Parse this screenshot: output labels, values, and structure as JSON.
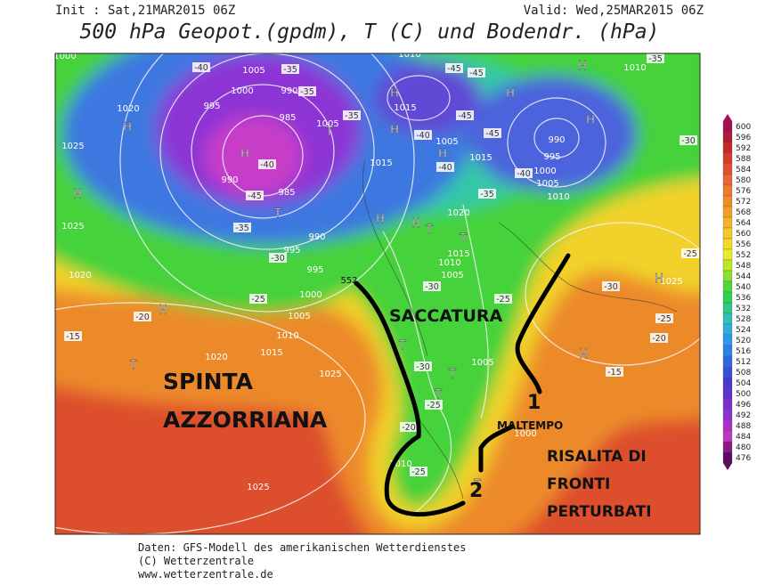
{
  "header": {
    "init": "Init : Sat,21MAR2015 06Z",
    "valid": "Valid: Wed,25MAR2015 06Z",
    "title": "500 hPa Geopot.(gpdm), T (C) und Bodendr. (hPa)"
  },
  "colorbar": {
    "levels": [
      600,
      596,
      592,
      588,
      584,
      580,
      576,
      572,
      568,
      564,
      560,
      556,
      552,
      548,
      544,
      540,
      536,
      532,
      528,
      524,
      520,
      516,
      512,
      508,
      504,
      500,
      496,
      492,
      488,
      484,
      480,
      476
    ],
    "colors": [
      "#a01050",
      "#b81838",
      "#c82828",
      "#d83c28",
      "#e05030",
      "#e86430",
      "#f07830",
      "#f08c28",
      "#f4a028",
      "#f4b428",
      "#f4c828",
      "#f0dc28",
      "#e8ec28",
      "#b8e828",
      "#88e030",
      "#50d838",
      "#30d050",
      "#30c888",
      "#30c0b8",
      "#30b0d8",
      "#3098e8",
      "#3080e8",
      "#3068e0",
      "#3850d8",
      "#4838d0",
      "#6030d0",
      "#7830d0",
      "#9030d0",
      "#a830c8",
      "#c038c0",
      "#8c1888",
      "#5c0c60"
    ]
  },
  "map": {
    "isobar_labels": [
      "1005",
      "990",
      "1000",
      "995",
      "985",
      "1005",
      "990",
      "985",
      "995",
      "990",
      "995",
      "1000",
      "1005",
      "1010",
      "1015",
      "1020",
      "1025",
      "1025",
      "1020",
      "1025",
      "1025",
      "1020",
      "1010",
      "1015",
      "1015",
      "1005",
      "1015",
      "1020",
      "1015",
      "1010",
      "1005",
      "1005",
      "1000",
      "1010",
      "1010",
      "1010",
      "1005",
      "1000",
      "995",
      "990",
      "1025",
      "1000"
    ],
    "high_low_labels": [
      "H",
      "H",
      "H",
      "H",
      "H",
      "H",
      "H",
      "H",
      "H",
      "H",
      "H",
      "H",
      "H",
      "H",
      "T",
      "T",
      "T",
      "T",
      "T",
      "T",
      "T",
      "T",
      "T"
    ],
    "temperature_labels": [
      "-40",
      "-35",
      "-35",
      "-40",
      "-45",
      "-35",
      "-30",
      "-25",
      "-20",
      "-15",
      "-35",
      "-40",
      "-45",
      "-40",
      "-35",
      "-30",
      "-25",
      "-30",
      "-25",
      "-20",
      "-25",
      "-35",
      "-30",
      "-25",
      "-30",
      "-25",
      "-20",
      "-15",
      "-45",
      "-45",
      "-45",
      "-40"
    ],
    "contour_label": "552",
    "annotations": {
      "trough": "SACCATURA",
      "ridge_line1": "SPINTA",
      "ridge_line2": "AZZORRIANA",
      "fronts_line1": "RISALITA DI",
      "fronts_line2": "FRONTI",
      "fronts_line3": "PERTURBATI",
      "bad_weather": "MALTEMPO",
      "marker1": "1",
      "marker2": "2"
    }
  },
  "footer": {
    "source": "Daten: GFS-Modell des amerikanischen Wetterdienstes",
    "copyright": "(C) Wetterzentrale",
    "url": "www.wetterzentrale.de"
  }
}
